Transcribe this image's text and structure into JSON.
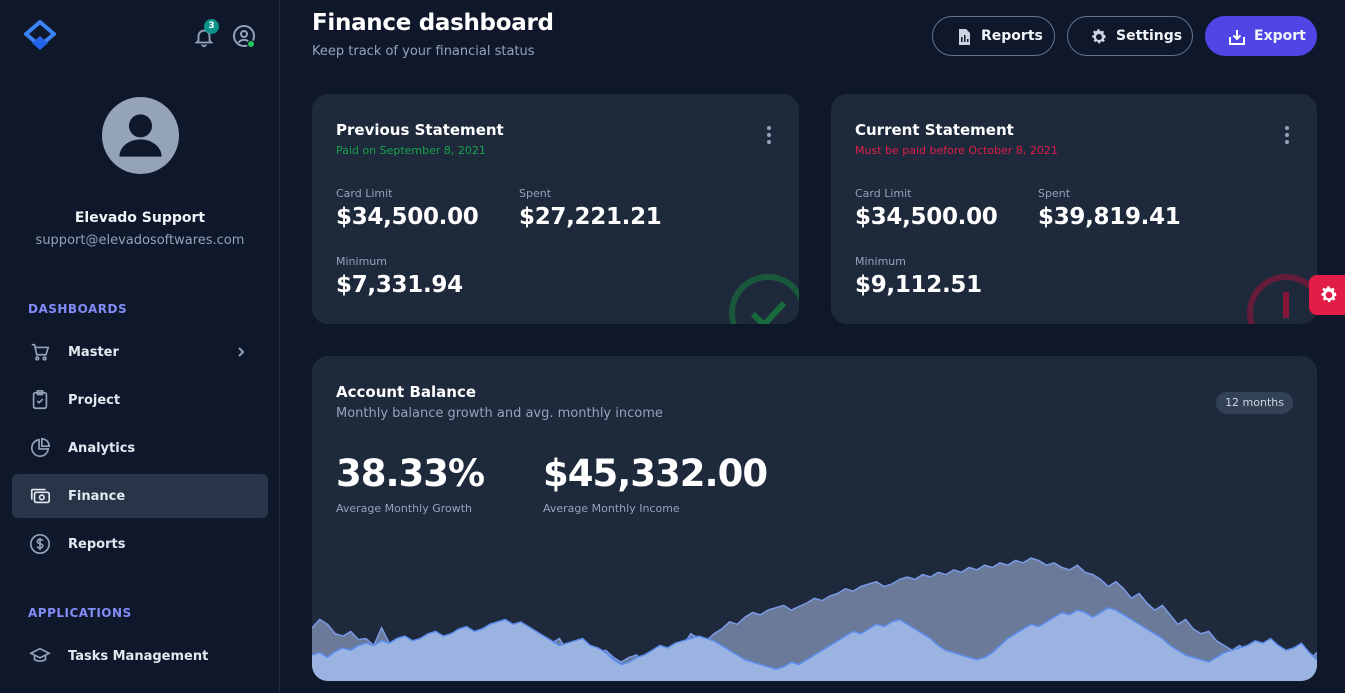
{
  "header": {
    "title": "Finance dashboard",
    "subtitle": "Keep track of your financial status",
    "buttons": {
      "reports": "Reports",
      "settings": "Settings",
      "export": "Export"
    }
  },
  "sidebar": {
    "notification_count": "3",
    "user": {
      "name": "Elevado Support",
      "email": "support@elevadosoftwares.com"
    },
    "sections": [
      {
        "label": "DASHBOARDS"
      },
      {
        "label": "APPLICATIONS"
      }
    ],
    "items": [
      {
        "label": "Master",
        "icon": "cart-icon"
      },
      {
        "label": "Project",
        "icon": "clipboard-icon"
      },
      {
        "label": "Analytics",
        "icon": "pie-chart-icon"
      },
      {
        "label": "Finance",
        "icon": "cash-icon",
        "active": true
      },
      {
        "label": "Reports",
        "icon": "dollar-icon"
      },
      {
        "label": "Tasks Management",
        "icon": "graduation-cap-icon"
      }
    ]
  },
  "previous_statement": {
    "title": "Previous Statement",
    "status": "Paid on September 8, 2021",
    "status_color": "#16a34a",
    "card_limit_label": "Card Limit",
    "card_limit": "$34,500.00",
    "spent_label": "Spent",
    "spent": "$27,221.21",
    "minimum_label": "Minimum",
    "minimum": "$7,331.94",
    "icon": "check-circle-icon"
  },
  "current_statement": {
    "title": "Current Statement",
    "status": "Must be paid before October 8, 2021",
    "status_color": "#e11d48",
    "card_limit_label": "Card Limit",
    "card_limit": "$34,500.00",
    "spent_label": "Spent",
    "spent": "$39,819.41",
    "minimum_label": "Minimum",
    "minimum": "$9,112.51",
    "icon": "exclamation-circle-icon"
  },
  "account_balance": {
    "title": "Account Balance",
    "subtitle": "Monthly balance growth and avg. monthly income",
    "range": "12 months",
    "growth_value": "38.33%",
    "growth_label": "Average Monthly Growth",
    "income_value": "$45,332.00",
    "income_label": "Average Monthly Income"
  },
  "chart_data": {
    "type": "area",
    "series": [
      {
        "values": [
          45,
          52,
          48,
          40,
          38,
          42,
          35,
          36,
          30,
          45,
          32,
          34,
          30,
          28,
          30,
          24,
          28,
          30,
          26,
          30,
          24,
          20,
          22,
          16,
          14,
          12,
          8,
          15,
          14,
          20,
          25,
          32,
          36,
          25,
          30,
          28,
          20,
          24,
          26,
          20,
          16,
          20,
          22,
          14,
          12,
          16,
          20,
          26,
          30,
          40,
          36,
          34,
          40,
          44,
          50,
          48,
          54,
          58,
          56,
          60,
          62,
          64,
          60,
          63,
          66,
          70,
          68,
          72,
          74,
          78,
          76,
          80,
          82,
          84,
          80,
          82,
          86,
          88,
          86,
          90,
          88,
          92,
          90,
          94,
          92,
          96,
          94,
          98,
          96,
          100,
          98,
          102,
          100,
          104,
          102,
          98,
          100,
          96,
          94,
          98,
          92,
          90,
          86,
          80,
          84,
          78,
          70,
          74,
          66,
          60,
          64,
          56,
          48,
          52,
          44,
          40,
          42,
          34,
          30,
          26,
          30,
          24,
          20,
          22,
          18,
          20,
          24,
          16,
          22,
          18,
          24
        ]
      },
      {
        "values": [
          22,
          24,
          20,
          25,
          28,
          26,
          30,
          32,
          30,
          34,
          32,
          36,
          38,
          34,
          36,
          40,
          42,
          38,
          40,
          44,
          46,
          42,
          44,
          48,
          50,
          52,
          48,
          50,
          46,
          42,
          38,
          34,
          30,
          32,
          34,
          36,
          30,
          28,
          24,
          18,
          14,
          16,
          20,
          22,
          26,
          30,
          28,
          32,
          34,
          36,
          38,
          36,
          34,
          30,
          26,
          22,
          18,
          16,
          14,
          12,
          10,
          12,
          16,
          14,
          18,
          22,
          26,
          30,
          34,
          38,
          42,
          40,
          44,
          48,
          46,
          50,
          52,
          48,
          44,
          40,
          36,
          30,
          26,
          24,
          22,
          20,
          18,
          20,
          24,
          30,
          36,
          40,
          44,
          48,
          46,
          50,
          54,
          58,
          56,
          60,
          58,
          54,
          58,
          62,
          60,
          56,
          52,
          48,
          44,
          40,
          36,
          30,
          26,
          22,
          20,
          18,
          16,
          20,
          24,
          26,
          28,
          30,
          34,
          32,
          36,
          30,
          26,
          28,
          32,
          24,
          18
        ]
      }
    ]
  }
}
